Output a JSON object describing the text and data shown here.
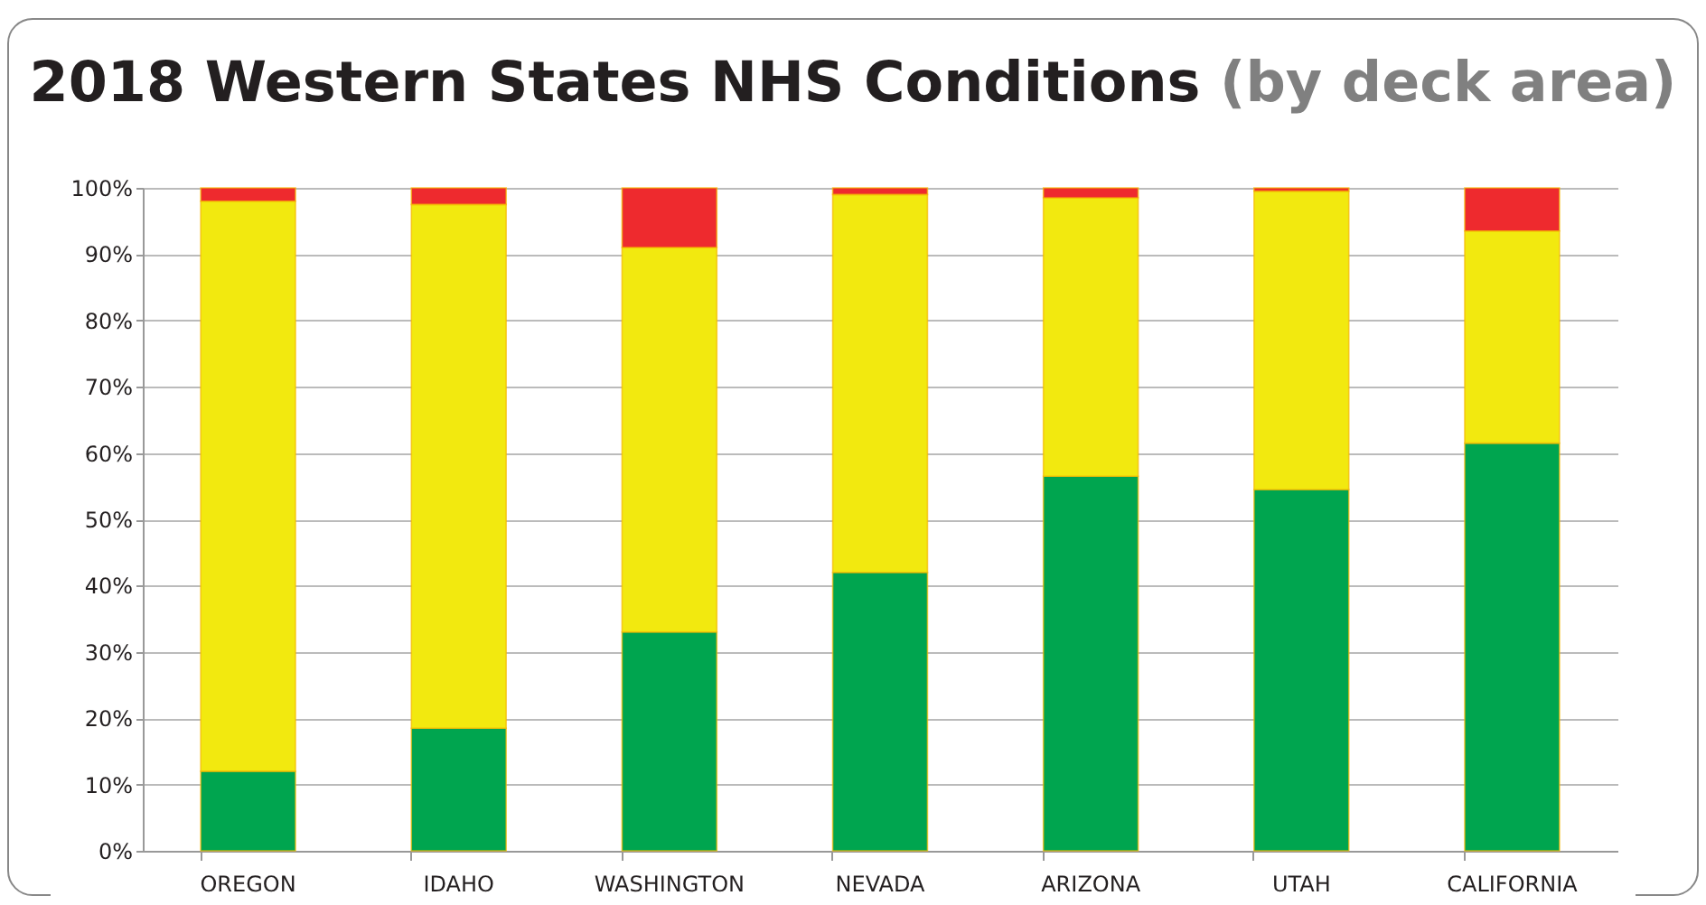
{
  "chart_data": {
    "type": "bar",
    "stacked": true,
    "title": "2018 Western States NHS Conditions",
    "subtitle": "(by deck area)",
    "categories": [
      "OREGON",
      "IDAHO",
      "WASHINGTON",
      "NEVADA",
      "ARIZONA",
      "UTAH",
      "CALIFORNIA"
    ],
    "series": [
      {
        "color": "#00a54f",
        "values": [
          12,
          18.5,
          33,
          42,
          56.5,
          54.5,
          61.5
        ]
      },
      {
        "color": "#f2e90f",
        "values": [
          86,
          79,
          58,
          57,
          42,
          45,
          32
        ]
      },
      {
        "color": "#ee2a2e",
        "values": [
          2,
          2.5,
          9,
          1,
          1.5,
          0.5,
          6.5
        ]
      }
    ],
    "ylim": [
      0,
      100
    ],
    "yticks": [
      {
        "value": 0,
        "label": "0%"
      },
      {
        "value": 10,
        "label": "10%"
      },
      {
        "value": 20,
        "label": "20%"
      },
      {
        "value": 30,
        "label": "30%"
      },
      {
        "value": 40,
        "label": "40%"
      },
      {
        "value": 50,
        "label": "50%"
      },
      {
        "value": 60,
        "label": "60%"
      },
      {
        "value": 70,
        "label": "70%"
      },
      {
        "value": 80,
        "label": "80%"
      },
      {
        "value": 90,
        "label": "90%"
      },
      {
        "value": 100,
        "label": "100%"
      }
    ],
    "grid": "y",
    "legend": false
  }
}
